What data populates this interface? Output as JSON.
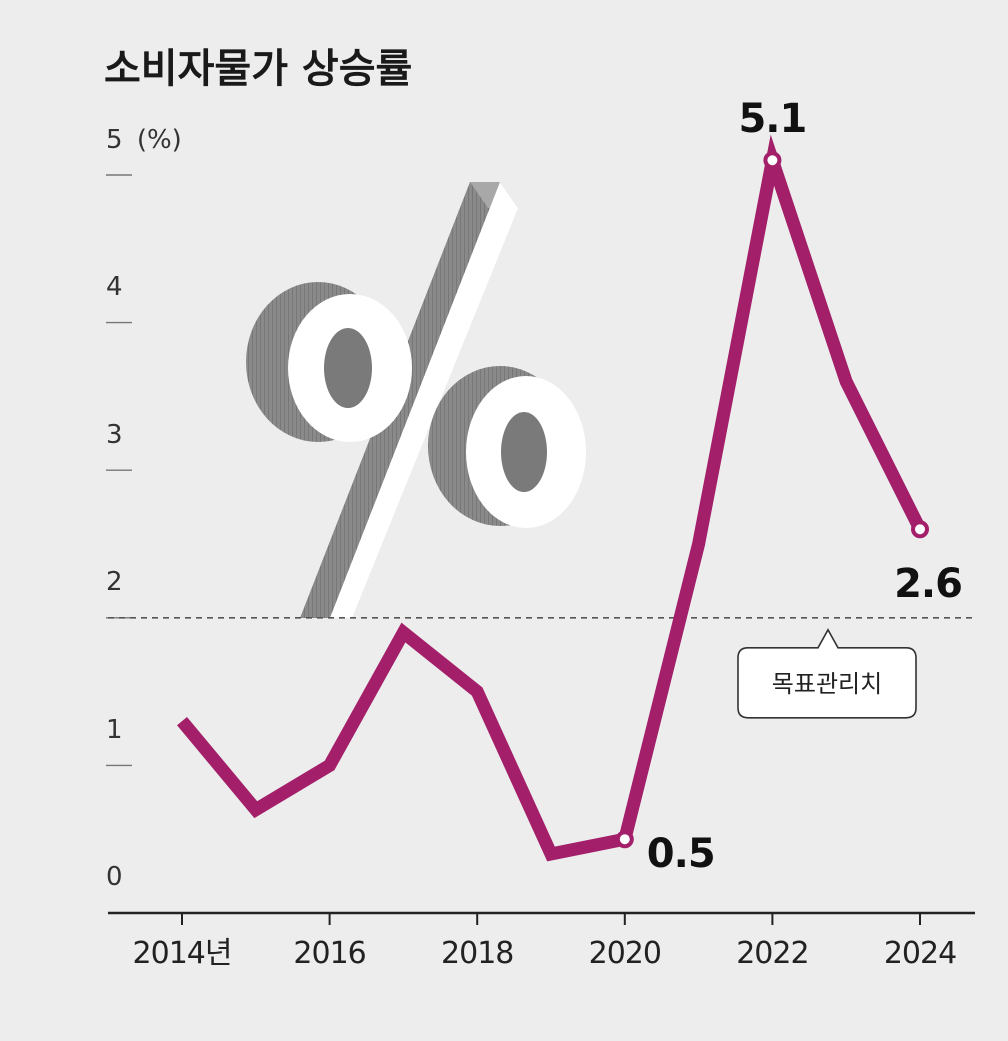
{
  "chart_data": {
    "type": "line",
    "title": "소비자물가 상승률",
    "y_unit_label": "(%)",
    "x": [
      2014,
      2015,
      2016,
      2017,
      2018,
      2019,
      2020,
      2021,
      2022,
      2023,
      2024
    ],
    "series": [
      {
        "values": [
          1.3,
          0.7,
          1.0,
          1.9,
          1.5,
          0.4,
          0.5,
          2.5,
          5.1,
          3.6,
          2.6
        ]
      }
    ],
    "xticks": [
      {
        "x": 2014,
        "label": "2014년"
      },
      {
        "x": 2016,
        "label": "2016"
      },
      {
        "x": 2018,
        "label": "2018"
      },
      {
        "x": 2020,
        "label": "2020"
      },
      {
        "x": 2022,
        "label": "2022"
      },
      {
        "x": 2024,
        "label": "2024"
      }
    ],
    "yticks": [
      "0",
      "1",
      "2",
      "3",
      "4",
      "5"
    ],
    "ylim": [
      0,
      5
    ],
    "xlim": [
      2014,
      2024
    ],
    "data_labels": [
      {
        "x": 2020,
        "text": "0.5"
      },
      {
        "x": 2022,
        "text": "5.1"
      },
      {
        "x": 2024,
        "text": "2.6"
      }
    ],
    "reference_line": {
      "value": 2,
      "label": "목표관리치"
    },
    "colors": {
      "line": "#a31f6a",
      "reference": "#555555",
      "axis": "#222222"
    },
    "grid": false,
    "legend": "none"
  },
  "decoration": {
    "icon": "percent-3d-icon"
  }
}
